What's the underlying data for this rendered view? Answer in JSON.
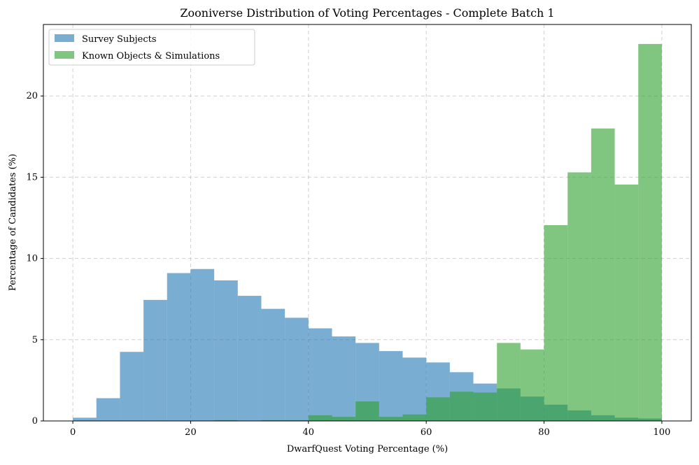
{
  "chart_data": {
    "type": "bar",
    "title": "Zooniverse Distribution of Voting Percentages - Complete Batch 1",
    "xlabel": "DwarfQuest Voting Percentage (%)",
    "ylabel": "Percentage of Candidates (%)",
    "xlim": [
      -5,
      105
    ],
    "ylim": [
      0,
      24.4
    ],
    "xticks": [
      0,
      20,
      40,
      60,
      80,
      100
    ],
    "yticks": [
      0,
      5,
      10,
      15,
      20
    ],
    "grid": true,
    "legend_position": "top-left",
    "bin_edges": [
      0,
      4,
      8,
      12,
      16,
      20,
      24,
      28,
      32,
      36,
      40,
      44,
      48,
      52,
      56,
      60,
      64,
      68,
      72,
      76,
      80,
      84,
      88,
      92,
      96,
      100
    ],
    "series": [
      {
        "name": "Survey Subjects",
        "color": "#1f77b4",
        "alpha": 0.6,
        "values": [
          0.2,
          1.4,
          4.25,
          7.45,
          9.1,
          9.35,
          8.65,
          7.7,
          6.9,
          6.35,
          5.7,
          5.2,
          4.8,
          4.3,
          3.9,
          3.6,
          3.0,
          2.3,
          2.0,
          1.5,
          1.0,
          0.65,
          0.35,
          0.2,
          0.15
        ]
      },
      {
        "name": "Known Objects & Simulations",
        "color": "#2ca02c",
        "alpha": 0.6,
        "values": [
          0,
          0,
          0,
          0,
          0,
          0,
          0.05,
          0,
          0.05,
          0.05,
          0.35,
          0.25,
          1.2,
          0.25,
          0.4,
          1.45,
          1.8,
          1.75,
          4.8,
          4.4,
          12.05,
          15.3,
          18.0,
          14.55,
          23.2
        ]
      }
    ]
  }
}
